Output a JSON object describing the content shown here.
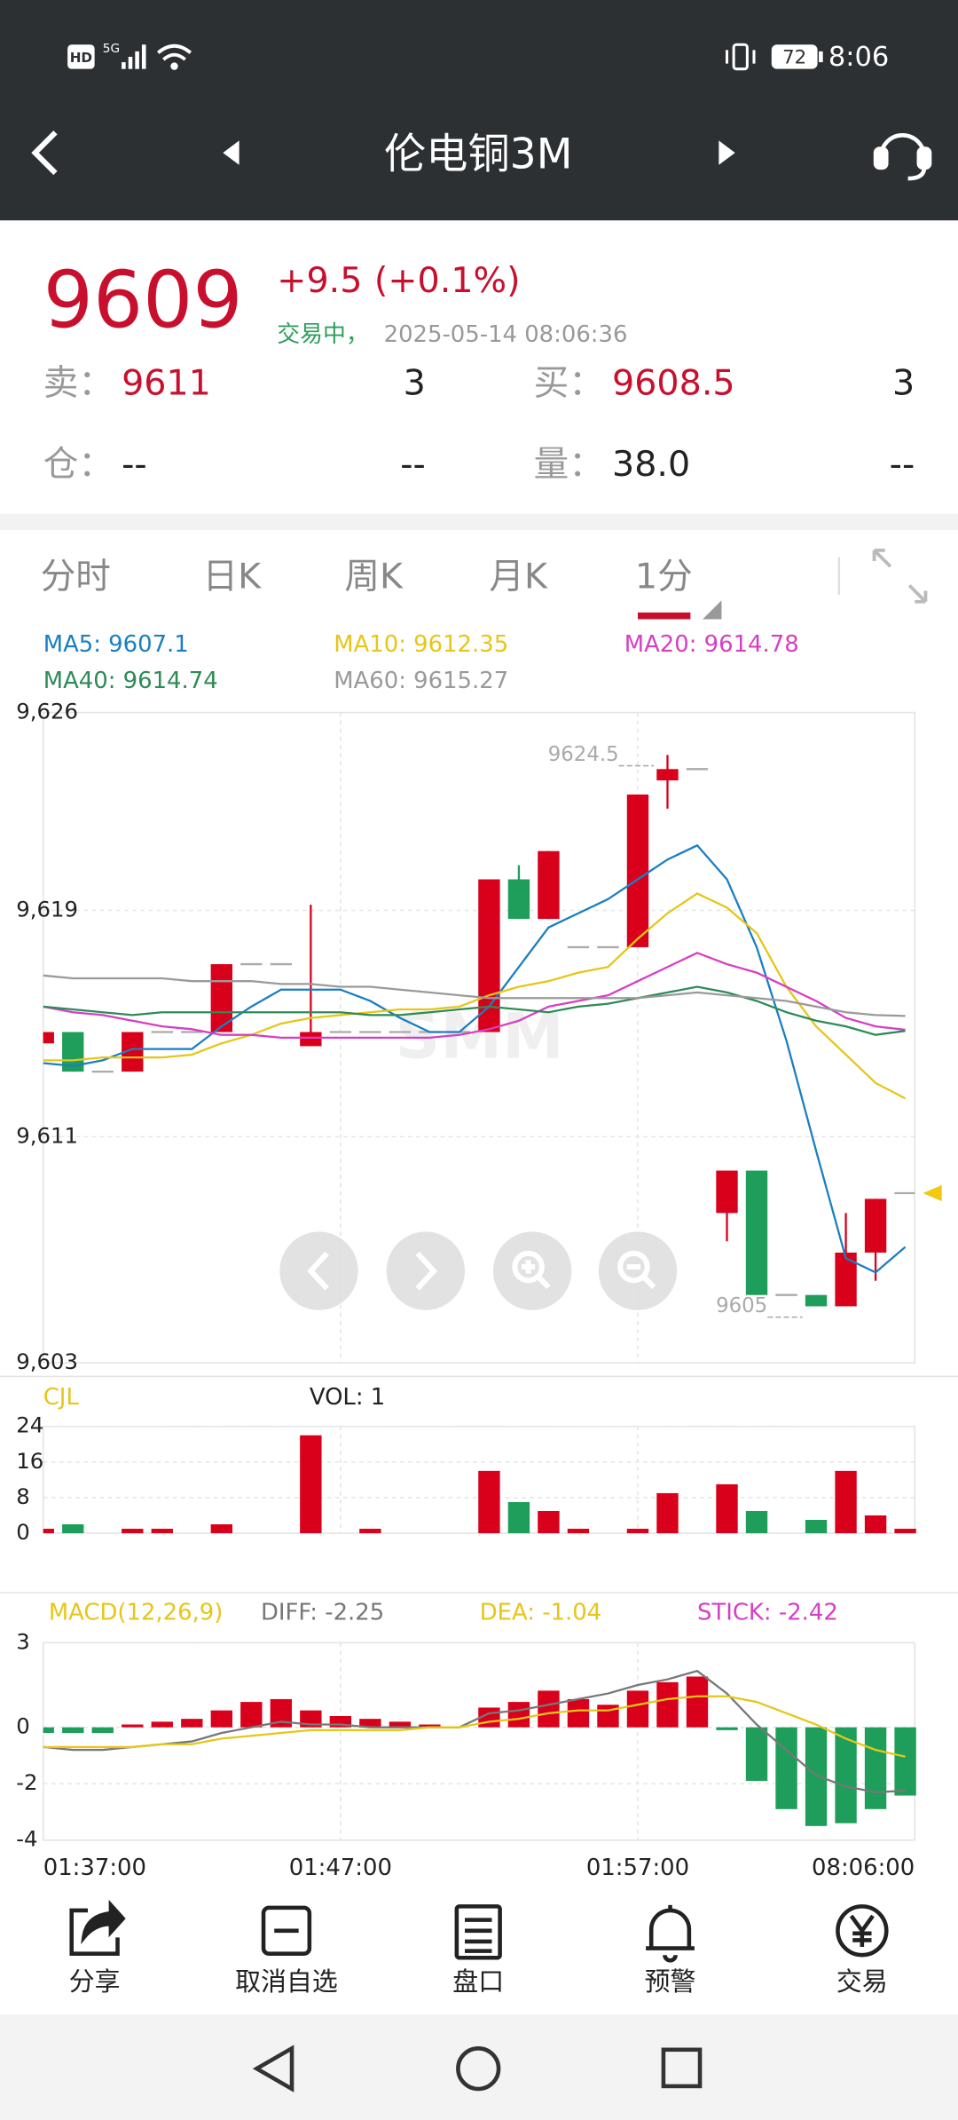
{
  "status_bar": {
    "hd": "HD",
    "network": "5G",
    "battery": "72",
    "time": "8:06"
  },
  "header": {
    "title": "伦电铜3M"
  },
  "quote": {
    "price": 9609,
    "change": "+9.5",
    "change_pct": "(+0.1%)",
    "status": "交易中，",
    "timestamp": "2025-05-14 08:06:36",
    "sell": {
      "label": "卖：",
      "price": 9611,
      "qty": 3
    },
    "buy": {
      "label": "买：",
      "price": 9608.5,
      "qty": 3
    },
    "position": {
      "label": "仓：",
      "value": "--",
      "qty": "--"
    },
    "volume": {
      "label": "量：",
      "value": "38.0",
      "qty": "--"
    }
  },
  "tabs": [
    "分时",
    "日K",
    "周K",
    "月K",
    "1分"
  ],
  "chart_data": [
    {
      "type": "candlestick",
      "watermark": "SMM",
      "ylim": [
        9603,
        9626
      ],
      "yticks": [
        {
          "value": 9603,
          "label": "9,603"
        },
        {
          "value": 9611,
          "label": "9,611"
        },
        {
          "value": 9619,
          "label": "9,619"
        },
        {
          "value": 9626,
          "label": "9,626"
        }
      ],
      "grid": true,
      "up_color": "#d9001b",
      "down_color": "#1e9e5a",
      "flat_color": "#aaaaaa",
      "marker_color": "#f2c811",
      "open": [
        9614.3,
        9614.7,
        9613.3,
        9613.3,
        9614.7,
        9614.7,
        9614.7,
        9617.1,
        9617.1,
        9614.2,
        9614.7,
        9614.7,
        9614.7,
        9614.7,
        9614.7,
        9614.7,
        9620.1,
        9618.7,
        9617.7,
        9617.7,
        9617.7,
        9623.6,
        9624.0,
        9608.3,
        9609.8,
        9605.4,
        9605.4,
        9605.0,
        9606.9,
        9609
      ],
      "close": [
        9614.7,
        9613.3,
        9613.3,
        9614.7,
        9614.7,
        9614.7,
        9617.1,
        9617.1,
        9617.1,
        9614.7,
        9614.7,
        9614.7,
        9614.7,
        9614.7,
        9614.7,
        9620.1,
        9618.7,
        9621.1,
        9617.7,
        9617.7,
        9623.1,
        9624.0,
        9624.0,
        9609.8,
        9605.4,
        9605.4,
        9605.0,
        9606.9,
        9608.8,
        9609
      ],
      "high": [
        9614.7,
        9614.7,
        9613.3,
        9614.7,
        9614.7,
        9614.7,
        9617.1,
        9617.1,
        9617.1,
        9619.2,
        9614.7,
        9614.7,
        9614.7,
        9614.7,
        9614.7,
        9620.1,
        9620.6,
        9621.1,
        9617.7,
        9617.7,
        9623.1,
        9624.5,
        9624.0,
        9609.8,
        9609.8,
        9605.4,
        9605.4,
        9608.3,
        9608.8,
        9609
      ],
      "low": [
        9614.3,
        9613.3,
        9613.3,
        9613.3,
        9614.7,
        9614.7,
        9614.7,
        9617.1,
        9617.1,
        9614.2,
        9614.7,
        9614.7,
        9614.7,
        9614.7,
        9614.7,
        9614.7,
        9618.7,
        9618.7,
        9617.7,
        9617.7,
        9617.7,
        9622.6,
        9624.0,
        9607.3,
        9605.4,
        9605.4,
        9605.0,
        9605.0,
        9605.9,
        9609
      ],
      "high_label": 9624.5,
      "low_label": 9605,
      "series": [
        {
          "name": "MA5: 9607.1",
          "color": "#1a7fc1",
          "values": [
            9613.6,
            9613.5,
            9613.7,
            9614.1,
            9614.1,
            9614.1,
            9614.9,
            9615.6,
            9616.2,
            9616.2,
            9616.2,
            9615.8,
            9615.2,
            9614.7,
            9614.7,
            9615.6,
            9617.0,
            9618.4,
            9618.9,
            9619.4,
            9620.1,
            9620.8,
            9621.3,
            9620.1,
            9617.7,
            9614.4,
            9610.5,
            9606.7,
            9606.2,
            9607.1
          ]
        },
        {
          "name": "MA10: 9612.35",
          "color": "#e6c619",
          "values": [
            9613.7,
            9613.7,
            9613.8,
            9613.8,
            9613.8,
            9613.9,
            9614.3,
            9614.6,
            9615.0,
            9615.2,
            9615.3,
            9615.4,
            9615.5,
            9615.5,
            9615.6,
            9616.0,
            9616.3,
            9616.5,
            9616.8,
            9617.0,
            9618.0,
            9618.9,
            9619.6,
            9619.1,
            9618.2,
            9616.3,
            9614.9,
            9613.9,
            9612.9,
            9612.35
          ]
        },
        {
          "name": "MA20: 9614.78",
          "color": "#d63fc4",
          "values": [
            9615.6,
            9615.4,
            9615.3,
            9615.1,
            9614.9,
            9614.8,
            9614.6,
            9614.6,
            9614.5,
            9614.5,
            9614.5,
            9614.5,
            9614.5,
            9614.5,
            9614.6,
            9614.8,
            9615.1,
            9615.6,
            9615.8,
            9616.0,
            9616.5,
            9617.0,
            9617.5,
            9617.1,
            9616.8,
            9616.3,
            9615.8,
            9615.2,
            9614.9,
            9614.78
          ]
        },
        {
          "name": "MA40: 9614.74",
          "color": "#2e8b57",
          "values": [
            9615.6,
            9615.5,
            9615.4,
            9615.3,
            9615.4,
            9615.4,
            9615.4,
            9615.4,
            9615.4,
            9615.4,
            9615.4,
            9615.3,
            9615.3,
            9615.4,
            9615.5,
            9615.6,
            9615.5,
            9615.4,
            9615.6,
            9615.7,
            9615.9,
            9616.1,
            9616.3,
            9616.1,
            9615.8,
            9615.4,
            9615.1,
            9614.9,
            9614.6,
            9614.74
          ]
        },
        {
          "name": "MA60: 9615.27",
          "color": "#9a9a9a",
          "values": [
            9616.7,
            9616.6,
            9616.6,
            9616.6,
            9616.6,
            9616.5,
            9616.5,
            9616.5,
            9616.4,
            9616.4,
            9616.3,
            9616.3,
            9616.2,
            9616.1,
            9616.0,
            9615.9,
            9615.9,
            9615.9,
            9615.9,
            9615.9,
            9615.9,
            9616.0,
            9616.1,
            9616.0,
            9615.9,
            9615.8,
            9615.6,
            9615.4,
            9615.3,
            9615.27
          ]
        }
      ]
    },
    {
      "type": "bar",
      "title": "CJL",
      "label": "VOL: 1",
      "title_color": "#e6c619",
      "ylim": [
        0,
        24
      ],
      "yticks": [
        0,
        8,
        16,
        24
      ],
      "values": [
        1,
        2,
        0,
        1,
        1,
        0,
        2,
        0,
        0,
        22,
        0,
        1,
        0,
        0,
        0,
        14,
        7,
        5,
        1,
        0,
        1,
        9,
        0,
        11,
        5,
        0,
        3,
        14,
        4,
        1
      ]
    },
    {
      "type": "macd",
      "title": "MACD(12,26,9)",
      "title_color": "#e6c619",
      "ylim": [
        -4,
        3
      ],
      "yticks": [
        -4,
        -2,
        0,
        3
      ],
      "grid": true,
      "categories": [
        "01:37:00",
        null,
        null,
        null,
        null,
        null,
        null,
        null,
        null,
        null,
        "01:47:00",
        null,
        null,
        null,
        null,
        null,
        null,
        null,
        null,
        null,
        "01:57:00",
        null,
        null,
        null,
        null,
        null,
        null,
        null,
        null,
        "08:06:00"
      ],
      "series": [
        {
          "name": "DIFF: -2.25",
          "color": "#777777",
          "values": [
            -0.7,
            -0.8,
            -0.8,
            -0.7,
            -0.6,
            -0.5,
            -0.2,
            0,
            0.2,
            0.1,
            0.1,
            0,
            0,
            0,
            0,
            0.5,
            0.6,
            0.8,
            1.0,
            1.2,
            1.5,
            1.7,
            2.0,
            1.2,
            0.1,
            -0.8,
            -1.7,
            -2.1,
            -2.3,
            -2.25
          ]
        },
        {
          "name": "DEA: -1.04",
          "color": "#e6c619",
          "values": [
            -0.7,
            -0.7,
            -0.7,
            -0.7,
            -0.6,
            -0.6,
            -0.4,
            -0.3,
            -0.2,
            -0.1,
            -0.1,
            -0.1,
            -0.1,
            0,
            0,
            0.2,
            0.3,
            0.5,
            0.6,
            0.6,
            0.8,
            1.0,
            1.1,
            1.1,
            0.9,
            0.5,
            0.1,
            -0.4,
            -0.8,
            -1.04
          ]
        }
      ],
      "stick": {
        "name": "STICK: -2.42",
        "color": "#d63fc4",
        "values": [
          -0.2,
          -0.2,
          -0.2,
          0.1,
          0.2,
          0.3,
          0.6,
          0.9,
          1.0,
          0.6,
          0.4,
          0.3,
          0.2,
          0.1,
          0,
          0.7,
          0.9,
          1.3,
          1.0,
          0.8,
          1.3,
          1.6,
          1.8,
          -0.1,
          -1.9,
          -2.9,
          -3.5,
          -3.4,
          -2.9,
          -2.42
        ]
      }
    }
  ],
  "toolbar": [
    "分享",
    "取消自选",
    "盘口",
    "预警",
    "交易"
  ]
}
